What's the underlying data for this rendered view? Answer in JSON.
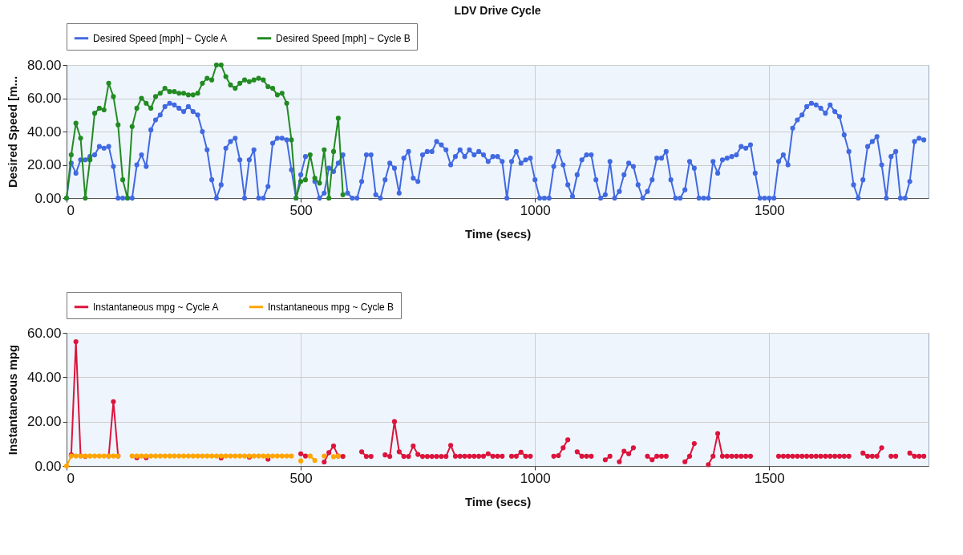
{
  "chart_data": [
    {
      "type": "line",
      "title": "LDV Drive Cycle",
      "xlabel": "Time (secs)",
      "ylabel": "Desired Speed [m...",
      "x": [
        0,
        10,
        20,
        30,
        40,
        50,
        60,
        70,
        80,
        90,
        100,
        110,
        120,
        130,
        140,
        150,
        160,
        170,
        180,
        190,
        200,
        210,
        220,
        230,
        240,
        250,
        260,
        270,
        280,
        290,
        300,
        310,
        320,
        330,
        340,
        350,
        360,
        370,
        380,
        390,
        400,
        410,
        420,
        430,
        440,
        450,
        460,
        470,
        480,
        490,
        500,
        510,
        520,
        530,
        540,
        550,
        560,
        570,
        580,
        590,
        600,
        610,
        620,
        630,
        640,
        650,
        660,
        670,
        680,
        690,
        700,
        710,
        720,
        730,
        740,
        750,
        760,
        770,
        780,
        790,
        800,
        810,
        820,
        830,
        840,
        850,
        860,
        870,
        880,
        890,
        900,
        910,
        920,
        930,
        940,
        950,
        960,
        970,
        980,
        990,
        1000,
        1010,
        1020,
        1030,
        1040,
        1050,
        1060,
        1070,
        1080,
        1090,
        1100,
        1110,
        1120,
        1130,
        1140,
        1150,
        1160,
        1170,
        1180,
        1190,
        1200,
        1210,
        1220,
        1230,
        1240,
        1250,
        1260,
        1270,
        1280,
        1290,
        1300,
        1310,
        1320,
        1330,
        1340,
        1350,
        1360,
        1370,
        1380,
        1390,
        1400,
        1410,
        1420,
        1430,
        1440,
        1450,
        1460,
        1470,
        1480,
        1490,
        1500,
        1510,
        1520,
        1530,
        1540,
        1550,
        1560,
        1570,
        1580,
        1590,
        1600,
        1610,
        1620,
        1630,
        1640,
        1650,
        1660,
        1670,
        1680,
        1690,
        1700,
        1710,
        1720,
        1730,
        1740,
        1750,
        1760,
        1770,
        1780,
        1790,
        1800,
        1810,
        1820,
        1830
      ],
      "series": [
        {
          "name": "Desired Speed [mph] ~ Cycle A",
          "color": "#4169e1",
          "values": [
            0,
            21,
            15,
            23,
            23,
            25,
            26,
            31,
            30,
            31,
            19,
            0,
            0,
            0,
            0,
            20,
            26,
            19,
            41,
            47,
            50,
            55,
            57,
            56,
            54,
            52,
            55,
            52,
            50,
            40,
            29,
            11,
            0,
            8,
            30,
            34,
            36,
            23,
            0,
            23,
            29,
            0,
            0,
            7,
            33,
            36,
            36,
            35,
            17,
            0,
            14,
            25,
            null,
            10,
            0,
            3,
            18,
            16,
            21,
            26,
            3,
            0,
            0,
            10,
            26,
            26,
            2,
            0,
            11,
            21,
            18,
            3,
            24,
            28,
            12,
            10,
            26,
            28,
            28,
            34,
            32,
            29,
            20,
            25,
            29,
            25,
            29,
            26,
            28,
            26,
            22,
            25,
            25,
            22,
            0,
            22,
            28,
            21,
            23,
            24,
            11,
            0,
            0,
            0,
            19,
            28,
            20,
            8,
            1,
            14,
            23,
            26,
            26,
            11,
            0,
            2,
            22,
            0,
            4,
            14,
            21,
            19,
            8,
            0,
            4,
            11,
            24,
            24,
            28,
            11,
            0,
            0,
            5,
            22,
            18,
            0,
            0,
            0,
            22,
            15,
            23,
            24,
            25,
            26,
            31,
            30,
            32,
            15,
            0,
            0,
            0,
            0,
            22,
            26,
            20,
            42,
            47,
            50,
            55,
            57,
            56,
            54,
            51,
            56,
            52,
            49,
            38,
            28,
            8,
            0,
            11,
            31,
            34,
            37,
            20,
            0,
            25,
            28,
            0,
            0,
            10,
            34,
            36,
            35
          ]
        },
        {
          "name": "Desired Speed [mph] ~ Cycle B",
          "color": "#228b22",
          "x": [
            0,
            10,
            20,
            30,
            40,
            50,
            60,
            70,
            80,
            90,
            100,
            110,
            120,
            130,
            140,
            150,
            160,
            170,
            180,
            190,
            200,
            210,
            220,
            230,
            240,
            250,
            260,
            270,
            280,
            290,
            300,
            310,
            320,
            330,
            340,
            350,
            360,
            370,
            380,
            390,
            400,
            410,
            420,
            430,
            440,
            450,
            460,
            470,
            480,
            490,
            500,
            510,
            520,
            530,
            540,
            550,
            560,
            570,
            580,
            590
          ],
          "values": [
            0,
            26,
            45,
            36,
            0,
            23,
            51,
            54,
            53,
            69,
            61,
            44,
            11,
            0,
            43,
            54,
            60,
            57,
            54,
            61,
            63,
            66,
            64,
            64,
            63,
            63,
            62,
            62,
            63,
            69,
            72,
            71,
            80,
            80,
            73,
            68,
            66,
            69,
            71,
            70,
            71,
            72,
            71,
            67,
            66,
            62,
            63,
            57,
            35,
            0,
            10,
            11,
            26,
            12,
            9,
            29,
            0,
            28,
            48,
            2
          ]
        }
      ],
      "xlim": [
        0,
        1840
      ],
      "xticks": [
        0,
        500,
        1000,
        1500
      ],
      "ylim": [
        0,
        80
      ],
      "yticks": [
        {
          "value": 0,
          "label": "0.00"
        },
        {
          "value": 20,
          "label": "20.00"
        },
        {
          "value": 40,
          "label": "40.00"
        },
        {
          "value": 60,
          "label": "60.00"
        },
        {
          "value": 80,
          "label": "80.00"
        }
      ],
      "grid": true,
      "legend": "top left",
      "marker": "circle",
      "line_style": "solid"
    },
    {
      "type": "line",
      "xlabel": "Time (secs)",
      "ylabel": "Instantaneous mpg",
      "x": [
        10,
        20,
        30,
        40,
        50,
        60,
        70,
        80,
        90,
        100,
        110,
        120,
        130,
        140,
        150,
        160,
        170,
        180,
        190,
        200,
        210,
        220,
        230,
        240,
        250,
        260,
        270,
        280,
        290,
        300,
        310,
        320,
        330,
        340,
        350,
        360,
        370,
        380,
        390,
        400,
        410,
        420,
        430,
        440,
        450,
        460,
        470,
        480,
        490,
        500,
        510,
        520,
        530,
        540,
        550,
        560,
        570,
        580,
        590,
        600,
        610,
        620,
        630,
        640,
        650,
        660,
        670,
        680,
        690,
        700,
        710,
        720,
        730,
        740,
        750,
        760,
        770,
        780,
        790,
        800,
        810,
        820,
        830,
        840,
        850,
        860,
        870,
        880,
        890,
        900,
        910,
        920,
        930,
        940,
        950,
        960,
        970,
        980,
        990,
        1000,
        1010,
        1020,
        1030,
        1040,
        1050,
        1060,
        1070,
        1080,
        1090,
        1100,
        1110,
        1120,
        1130,
        1140,
        1150,
        1160,
        1170,
        1180,
        1190,
        1200,
        1210,
        1220,
        1230,
        1240,
        1250,
        1260,
        1270,
        1280,
        1290,
        1300,
        1310,
        1320,
        1330,
        1340,
        1350,
        1360,
        1370,
        1380,
        1390,
        1400,
        1410,
        1420,
        1430,
        1440,
        1450,
        1460,
        1470,
        1480,
        1490,
        1500,
        1510,
        1520,
        1530,
        1540,
        1550,
        1560,
        1570,
        1580,
        1590,
        1600,
        1610,
        1620,
        1630,
        1640,
        1650,
        1660,
        1670,
        1680,
        1690,
        1700,
        1710,
        1720,
        1730,
        1740,
        1750,
        1760,
        1770,
        1780,
        1790,
        1800,
        1810,
        1820,
        1830
      ],
      "series": [
        {
          "name": "Instantaneous mpg ~ Cycle A",
          "color": "#dc143c",
          "values": [
            5,
            56,
            4.6,
            4.3,
            null,
            null,
            null,
            null,
            4.5,
            29,
            4.5,
            null,
            null,
            null,
            3.7,
            null,
            3.7,
            null,
            null,
            null,
            null,
            null,
            null,
            null,
            null,
            null,
            null,
            null,
            null,
            null,
            null,
            null,
            3.6,
            null,
            null,
            null,
            null,
            null,
            4,
            null,
            null,
            null,
            3.1,
            null,
            null,
            null,
            null,
            null,
            null,
            5.5,
            4.5,
            null,
            null,
            null,
            1.8,
            6,
            9,
            4.5,
            4.3,
            null,
            null,
            null,
            6.4,
            4.3,
            4.3,
            null,
            null,
            5,
            4.3,
            20,
            6.4,
            4.3,
            4.3,
            9,
            5.2,
            4.3,
            4.3,
            4.3,
            4.3,
            4.3,
            4.3,
            9.3,
            4.4,
            4.4,
            4.4,
            4.4,
            4.4,
            4.4,
            4.4,
            5.5,
            4.4,
            4.4,
            4.4,
            null,
            4.4,
            4.4,
            6.2,
            4.4,
            4.4,
            null,
            null,
            null,
            null,
            4.4,
            4.7,
            8.2,
            11.8,
            null,
            6.4,
            4.4,
            4.4,
            4.4,
            null,
            null,
            2.8,
            4.4,
            null,
            1.9,
            6.7,
            5.5,
            8.2,
            null,
            null,
            4.4,
            2.8,
            4.4,
            4.4,
            4.4,
            null,
            null,
            null,
            1.9,
            4.4,
            10.1,
            null,
            null,
            0.6,
            4.4,
            14.6,
            4.4,
            4.4,
            4.4,
            4.4,
            4.4,
            4.4,
            4.4,
            null,
            null,
            null,
            null,
            null,
            4.4,
            4.4,
            4.4,
            4.4,
            4.4,
            4.4,
            4.4,
            4.4,
            4.4,
            4.4,
            4.4,
            4.4,
            4.4,
            4.4,
            4.4,
            4.4,
            null,
            null,
            5.8,
            4.4,
            4.4,
            4.4,
            8.2,
            null,
            4.4,
            4.4,
            null,
            null,
            5.8,
            4.4,
            4.4,
            4.4
          ]
        },
        {
          "name": "Instantaneous mpg ~ Cycle B",
          "color": "#ffa500",
          "x": [
            0,
            10,
            20,
            30,
            40,
            50,
            60,
            70,
            80,
            90,
            100,
            110,
            120,
            130,
            140,
            150,
            160,
            170,
            180,
            190,
            200,
            210,
            220,
            230,
            240,
            250,
            260,
            270,
            280,
            290,
            300,
            310,
            320,
            330,
            340,
            350,
            360,
            370,
            380,
            390,
            400,
            410,
            420,
            430,
            440,
            450,
            460,
            470,
            480,
            490,
            500,
            510,
            520,
            530,
            540,
            550,
            560,
            570,
            580
          ],
          "values": [
            0,
            4.5,
            4.5,
            4.5,
            4.5,
            4.5,
            4.5,
            4.5,
            4.5,
            4.5,
            4.5,
            4.5,
            null,
            null,
            4.5,
            4.5,
            4.5,
            4.5,
            4.5,
            4.5,
            4.5,
            4.5,
            4.5,
            4.5,
            4.5,
            4.5,
            4.5,
            4.5,
            4.5,
            4.5,
            4.5,
            4.5,
            4.5,
            4.5,
            4.5,
            4.5,
            4.5,
            4.5,
            4.5,
            4.5,
            4.5,
            4.5,
            4.5,
            4.5,
            4.5,
            4.5,
            4.5,
            4.5,
            4.5,
            null,
            2.3,
            null,
            4.5,
            2.5,
            null,
            4.5,
            null,
            4.2,
            4.5
          ]
        }
      ],
      "xlim": [
        0,
        1840
      ],
      "xticks": [
        0,
        500,
        1000,
        1500
      ],
      "ylim": [
        0,
        60
      ],
      "yticks": [
        {
          "value": 0,
          "label": "0.00"
        },
        {
          "value": 20,
          "label": "20.00"
        },
        {
          "value": 40,
          "label": "40.00"
        },
        {
          "value": 60,
          "label": "60.00"
        }
      ],
      "grid": true,
      "legend": "top left",
      "marker": "circle",
      "line_style": "solid"
    }
  ]
}
